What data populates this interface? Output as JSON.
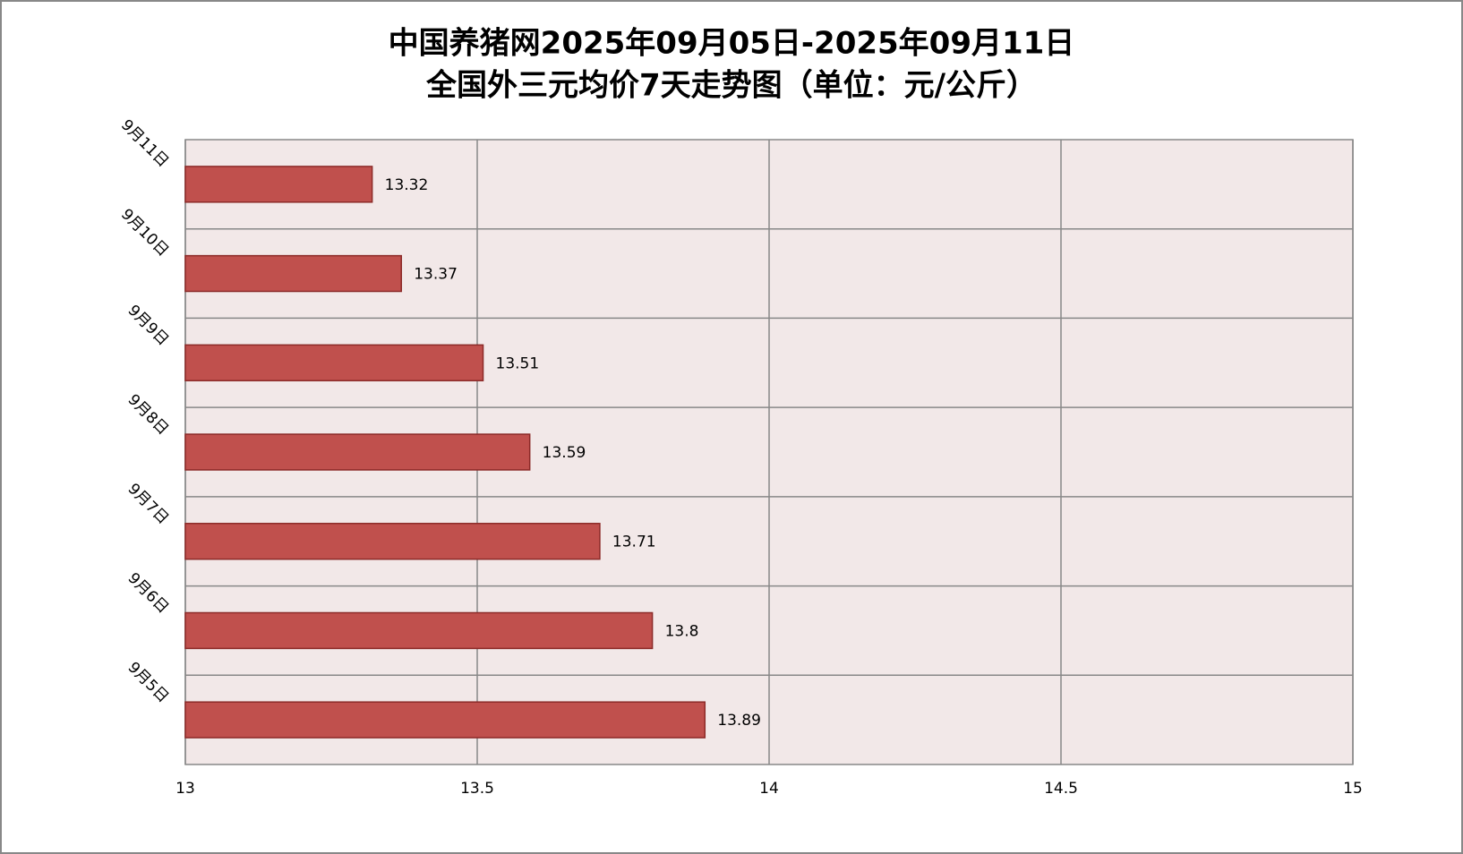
{
  "chart_data": {
    "type": "bar",
    "orientation": "horizontal",
    "title": "中国养猪网2025年09月05日-2025年09月11日",
    "subtitle": "全国外三元均价7天走势图（单位：元/公斤）",
    "categories": [
      "9月5日",
      "9月6日",
      "9月7日",
      "9月8日",
      "9月9日",
      "9月10日",
      "9月11日"
    ],
    "values": [
      13.89,
      13.8,
      13.71,
      13.59,
      13.51,
      13.37,
      13.32
    ],
    "color": "#c0504d",
    "edge_color": "#8c2a28",
    "plot_background": "#f2e8e8",
    "xlim": [
      13,
      15
    ],
    "xticks": [
      13,
      13.5,
      14,
      14.5,
      15
    ],
    "grid": true
  }
}
